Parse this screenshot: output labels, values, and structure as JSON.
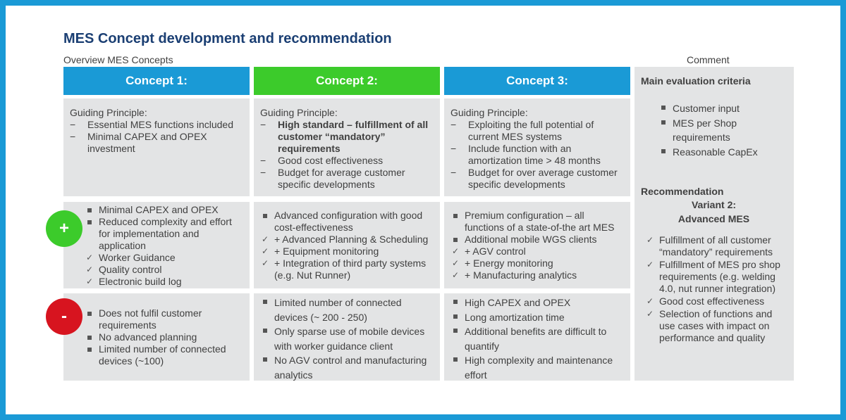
{
  "title": "MES Concept development and recommendation",
  "overview_label": "Overview MES Concepts",
  "comment_label": "Comment",
  "colors": {
    "frame": "#1a9ad6",
    "concept1": "#1a9ad6",
    "concept2": "#3ccb2b",
    "concept3": "#1a9ad6",
    "plus": "#3ccb2b",
    "minus": "#d7141f",
    "title": "#1b3f73"
  },
  "concepts": [
    {
      "header": "Concept 1:",
      "guiding_title": "Guiding Principle:",
      "guiding": [
        "Essential MES functions included",
        "Minimal CAPEX and OPEX investment"
      ],
      "pros": [
        {
          "marker": "square",
          "text": "Minimal CAPEX and OPEX"
        },
        {
          "marker": "square",
          "text": "Reduced complexity and effort for implementation and application"
        },
        {
          "marker": "check",
          "text": "Worker Guidance"
        },
        {
          "marker": "check",
          "text": "Quality control"
        },
        {
          "marker": "check",
          "text": "Electronic build log"
        }
      ],
      "cons": [
        {
          "marker": "square",
          "text": "Does not fulfil customer requirements"
        },
        {
          "marker": "square",
          "text": "No advanced planning"
        },
        {
          "marker": "square",
          "text": "Limited number of connected devices (~100)"
        }
      ]
    },
    {
      "header": "Concept 2:",
      "guiding_title": "Guiding Principle:",
      "guiding": [
        "High standard – fulfillment of all customer “mandatory” requirements",
        "Good cost effectiveness",
        "Budget for average customer specific developments"
      ],
      "pros": [
        {
          "marker": "square",
          "text": "Advanced configuration with good cost-effectiveness"
        },
        {
          "marker": "check",
          "text": "+ Advanced Planning & Scheduling"
        },
        {
          "marker": "check",
          "text": "+ Equipment monitoring"
        },
        {
          "marker": "check",
          "text": "+ Integration of third party systems (e.g. Nut Runner)"
        }
      ],
      "cons": [
        {
          "marker": "square",
          "text": "Limited number of connected devices (~ 200 - 250)"
        },
        {
          "marker": "square",
          "text": "Only sparse use of mobile devices with worker guidance client"
        },
        {
          "marker": "square",
          "text": "No AGV control and manufacturing analytics"
        }
      ]
    },
    {
      "header": "Concept 3:",
      "guiding_title": "Guiding Principle:",
      "guiding": [
        "Exploiting the full potential of current MES systems",
        "Include function with an amortization time > 48 months",
        "Budget for over average customer specific developments"
      ],
      "pros": [
        {
          "marker": "square",
          "text": "Premium configuration – all functions of a state-of-the art MES"
        },
        {
          "marker": "square",
          "text": "Additional mobile WGS clients"
        },
        {
          "marker": "check",
          "text": "+ AGV control"
        },
        {
          "marker": "check",
          "text": "+ Energy monitoring"
        },
        {
          "marker": "check",
          "text": "+ Manufacturing analytics"
        }
      ],
      "cons": [
        {
          "marker": "square",
          "text": "High CAPEX and OPEX"
        },
        {
          "marker": "square",
          "text": "Long amortization time"
        },
        {
          "marker": "square",
          "text": "Additional benefits are difficult to quantify"
        },
        {
          "marker": "square",
          "text": "High complexity and maintenance effort"
        }
      ]
    }
  ],
  "dash": "−",
  "plus_symbol": "+",
  "minus_symbol": "-",
  "comment": {
    "criteria_title": "Main evaluation criteria",
    "criteria": [
      "Customer input",
      "MES per Shop requirements",
      "Reasonable CapEx"
    ],
    "recommendation_title": "Recommendation",
    "variant_line1": "Variant 2:",
    "variant_line2": "Advanced MES",
    "points": [
      "Fulfillment of all customer “mandatory” requirements",
      "Fulfillment of MES pro shop requirements (e.g. welding 4.0, nut runner integration)",
      "Good cost effectiveness",
      "Selection of functions and use cases with impact on performance and quality"
    ]
  }
}
